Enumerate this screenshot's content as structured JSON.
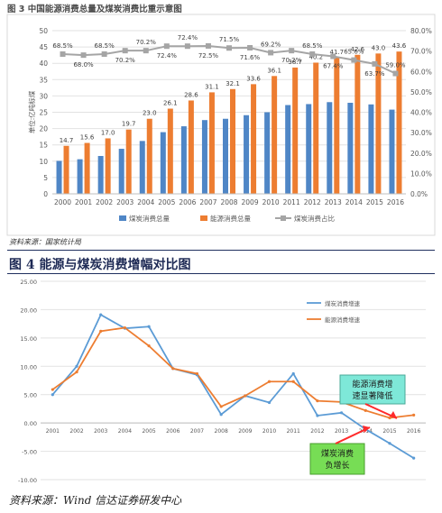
{
  "figure3": {
    "title": "图 3  中国能源消费总量及煤炭消费比重示意图",
    "source": "资料来源：国家统计局"
  },
  "figure4": {
    "title": "图 4  能源与煤炭消费增幅对比图",
    "source": "资料来源：Wind 信达证券研发中心",
    "callout_energy": [
      "能源消费增",
      "速显著降低"
    ],
    "callout_coal": [
      "煤炭消费",
      "负增长"
    ]
  },
  "colors": {
    "coal_bar": "#4f86c6",
    "energy_bar": "#ed7d31",
    "share_line": "#a5a5a5",
    "coal_growth": "#5b9bd5",
    "energy_growth": "#ed7d31",
    "callout_energy_bg": "#7ee8d8",
    "callout_coal_bg": "#77dd55"
  },
  "chart_data": [
    {
      "type": "bar",
      "categories": [
        "2000",
        "2001",
        "2002",
        "2003",
        "2004",
        "2005",
        "2006",
        "2007",
        "2008",
        "2009",
        "2010",
        "2011",
        "2012",
        "2013",
        "2014",
        "2015",
        "2016"
      ],
      "series": [
        {
          "name": "煤炭消费总量",
          "kind": "bar",
          "axis": "left",
          "values": [
            10.1,
            10.6,
            11.6,
            13.8,
            16.2,
            18.9,
            20.7,
            22.6,
            23.0,
            24.1,
            25.0,
            27.2,
            27.5,
            28.1,
            27.9,
            27.4,
            25.8
          ]
        },
        {
          "name": "能源消费总量",
          "kind": "bar",
          "axis": "left",
          "values": [
            14.7,
            15.6,
            17.0,
            19.7,
            23.0,
            26.1,
            28.6,
            31.1,
            32.1,
            33.6,
            36.1,
            38.7,
            40.2,
            41.7,
            42.6,
            43.0,
            43.6
          ],
          "labels": [
            "14.7",
            "15.6",
            "17.0",
            "19.7",
            "23.0",
            "26.1",
            "28.6",
            "31.1",
            "32.1",
            "33.6",
            "36.1",
            "38.7",
            "40.2",
            "41.7",
            "42.6",
            "43.0",
            "43.6"
          ]
        },
        {
          "name": "煤炭消费占比",
          "kind": "line",
          "axis": "right",
          "values": [
            68.5,
            68.0,
            68.5,
            70.2,
            70.2,
            72.4,
            72.4,
            72.5,
            71.5,
            71.6,
            69.2,
            70.2,
            68.5,
            67.4,
            65.6,
            63.7,
            59.0
          ],
          "labels": [
            "68.5%",
            "68.0%",
            "68.5%",
            "70.2%",
            "70.2%",
            "72.4%",
            "72.4%",
            "72.5%",
            "71.5%",
            "71.6%",
            "69.2%",
            "70.2%",
            "68.5%",
            "67.4%",
            "65.6%",
            "63.7%",
            "59.0%"
          ]
        }
      ],
      "ylabel": "单位:亿吨标煤",
      "ylim": [
        0,
        50
      ],
      "yticks": [
        "0",
        "5",
        "10",
        "15",
        "20",
        "25",
        "30",
        "35",
        "40",
        "45",
        "50"
      ],
      "y2lim": [
        0,
        80
      ],
      "y2ticks": [
        "0.0%",
        "10.0%",
        "20.0%",
        "30.0%",
        "40.0%",
        "50.0%",
        "60.0%",
        "70.0%",
        "80.0%"
      ],
      "legend_position": "bottom"
    },
    {
      "type": "line",
      "x": [
        "2001",
        "2002",
        "2003",
        "2004",
        "2005",
        "2006",
        "2007",
        "2008",
        "2009",
        "2010",
        "2011",
        "2012",
        "2013",
        "2014",
        "2015",
        "2016"
      ],
      "series": [
        {
          "name": "煤炭消费增速",
          "values": [
            5.0,
            10.0,
            19.1,
            16.7,
            17.0,
            9.6,
            8.5,
            1.5,
            4.8,
            3.6,
            8.7,
            1.3,
            1.8,
            -1.1,
            -3.6,
            -6.2
          ]
        },
        {
          "name": "能源消费增速",
          "values": [
            5.9,
            9.0,
            16.2,
            16.8,
            13.6,
            9.6,
            8.7,
            2.9,
            4.8,
            7.3,
            7.3,
            3.9,
            3.7,
            2.2,
            0.9,
            1.4
          ]
        }
      ],
      "ylim": [
        -10,
        25
      ],
      "yticks": [
        "-10.00",
        "-5.00",
        "0.00",
        "5.00",
        "10.00",
        "15.00",
        "20.00",
        "25.00"
      ],
      "legend_position": "top-right"
    }
  ]
}
